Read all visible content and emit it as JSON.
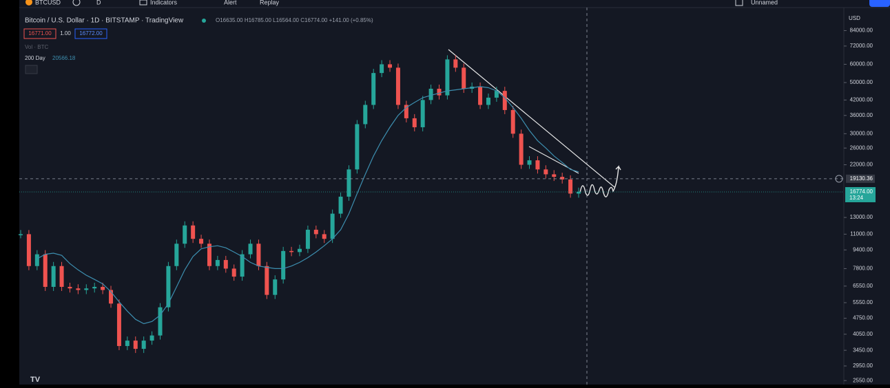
{
  "toolbar": {
    "symbol": "BTCUSD",
    "interval": "D",
    "indicators": "Indicators",
    "alert": "Alert",
    "replay": "Replay",
    "layout": "Unnamed"
  },
  "legend": {
    "title": "Bitcoin / U.S. Dollar · 1D · BITSTAMP · TradingView",
    "ohlc": "O16635.00 H16785.00 L16564.00 C16774.00 +141.00 (+0.85%)",
    "sell": "16771.00",
    "spread": "1.00",
    "buy": "16772.00",
    "volume": "Vol · BTC",
    "ma_name": "200 Day",
    "ma_value": "20566.18"
  },
  "chart_data": {
    "type": "candlestick",
    "currency": "USD",
    "log_scale": true,
    "grid": false,
    "ylim": [
      2450,
      105000
    ],
    "yticks": [
      {
        "value": 84000,
        "label": "84000.00"
      },
      {
        "value": 72000,
        "label": "72000.00"
      },
      {
        "value": 60000,
        "label": "60000.00"
      },
      {
        "value": 50000,
        "label": "50000.00"
      },
      {
        "value": 42000,
        "label": "42000.00"
      },
      {
        "value": 36000,
        "label": "36000.00"
      },
      {
        "value": 30000,
        "label": "30000.00"
      },
      {
        "value": 26000,
        "label": "26000.00"
      },
      {
        "value": 22000,
        "label": "22000.00"
      },
      {
        "value": 13000,
        "label": "13000.00"
      },
      {
        "value": 11000,
        "label": "11000.00"
      },
      {
        "value": 9400,
        "label": "9400.00"
      },
      {
        "value": 7800,
        "label": "7800.00"
      },
      {
        "value": 6550,
        "label": "6550.00"
      },
      {
        "value": 5550,
        "label": "5550.00"
      },
      {
        "value": 4750,
        "label": "4750.00"
      },
      {
        "value": 4050,
        "label": "4050.00"
      },
      {
        "value": 3450,
        "label": "3450.00"
      },
      {
        "value": 2950,
        "label": "2950.00"
      },
      {
        "value": 2550,
        "label": "2550.00"
      }
    ],
    "series": [
      {
        "name": "BTCUSD",
        "up_color": "#26a69a",
        "down_color": "#ef5350",
        "values": [
          11000,
          8000,
          9000,
          6500,
          8000,
          6500,
          6400,
          6300,
          6400,
          6500,
          6300,
          5500,
          3600,
          3800,
          3500,
          3800,
          4000,
          5300,
          8000,
          10000,
          12000,
          10500,
          10000,
          8000,
          8500,
          7800,
          7200,
          9000,
          10000,
          8000,
          6000,
          7000,
          9300,
          9200,
          9500,
          11500,
          11000,
          10500,
          13500,
          16000,
          21000,
          33000,
          40000,
          55000,
          60000,
          58000,
          40000,
          35000,
          32000,
          42000,
          47000,
          44000,
          63000,
          58000,
          47000,
          48000,
          40000,
          43000,
          46000,
          38000,
          30000,
          22000,
          23000,
          21000,
          20000,
          19500,
          19000,
          16500,
          16800
        ]
      },
      {
        "name": "200 Day",
        "color": "#3d8fb0",
        "values": [
          null,
          null,
          8600,
          9000,
          9100,
          8900,
          8200,
          7700,
          7300,
          7000,
          6700,
          6200,
          5600,
          5100,
          4700,
          4500,
          4600,
          4900,
          5500,
          6500,
          7700,
          8800,
          9500,
          9700,
          9800,
          9600,
          9200,
          8800,
          8300,
          8000,
          7900,
          7800,
          7800,
          8000,
          8300,
          8700,
          9200,
          9800,
          10500,
          11500,
          13500,
          16500,
          20000,
          24000,
          28000,
          32000,
          36000,
          39000,
          41000,
          43000,
          44000,
          45000,
          46000,
          46500,
          47000,
          47500,
          48000,
          47500,
          46000,
          43000,
          39000,
          35000,
          31000,
          28000,
          26000,
          24000,
          22500,
          21000,
          20500
        ]
      }
    ],
    "crosshair_price": 19130.36,
    "last_price": {
      "value": 16774,
      "label": "16774.00"
    },
    "countdown": "13:24"
  }
}
